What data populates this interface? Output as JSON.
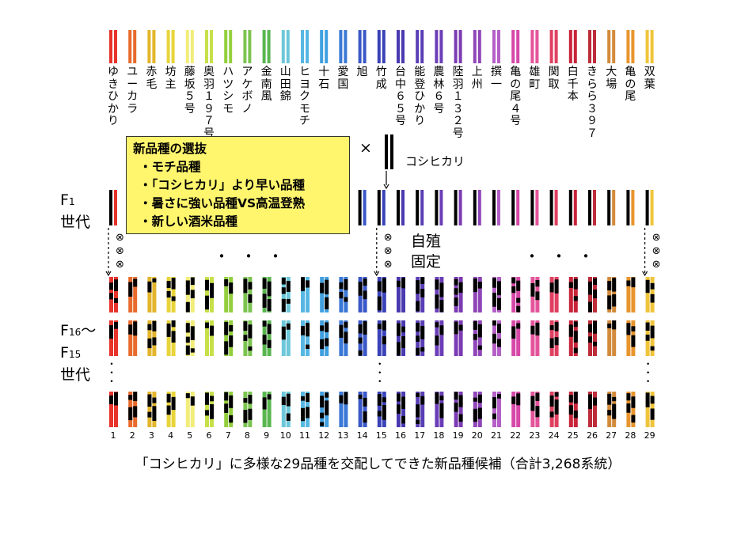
{
  "varieties": [
    "ゆきひかり",
    "ユーカラ",
    "赤毛",
    "坊主",
    "藤坂５号",
    "奥羽１９７号",
    "ハツシモ",
    "アケボノ",
    "金南風",
    "山田錦",
    "ヒヨクモチ",
    "十石",
    "愛国",
    "旭",
    "竹成",
    "台中６５号",
    "能登ひかり",
    "農林６号",
    "陸羽１３２号",
    "上州",
    "撰一",
    "亀の尾４号",
    "雄町",
    "関取",
    "白千本",
    "きらら３９７",
    "大場",
    "亀の尾",
    "双葉"
  ],
  "colors": [
    "#e8332b",
    "#e86a2c",
    "#e3b52b",
    "#e8d43a",
    "#f2ec7a",
    "#c7e04a",
    "#93cf3c",
    "#7cc451",
    "#59b64f",
    "#6cc7d9",
    "#57b7e3",
    "#3f9fe0",
    "#3a78d6",
    "#3a57c8",
    "#3a42b8",
    "#4a3ab0",
    "#5a3eb6",
    "#6b3eb8",
    "#7b3bb3",
    "#8f45b8",
    "#b45fc7",
    "#d648a8",
    "#e4549b",
    "#e04060",
    "#c8243a",
    "#bd2c3a",
    "#d38a3a",
    "#e8952e",
    "#f0c43a"
  ],
  "cross": {
    "symbol": "×",
    "parent": "コシヒカリ"
  },
  "selection": {
    "title": "新品種の選抜",
    "items": [
      "・モチ品種",
      "・「コシヒカリ」より早い品種",
      "・暑さに強い品種VS高温登熟",
      "・新しい酒米品種"
    ]
  },
  "labels": {
    "f1_a": "F",
    "f1_b": "1",
    "f1_c": "世代",
    "f16_a": "F",
    "f16_b": "16",
    "f16_c": "～",
    "f15_a": "F",
    "f15_b": "15",
    "f15_c": "世代",
    "self_a": "自殖",
    "self_b": "固定",
    "selfing_symbol": "⊗",
    "ellipsis": "・・・",
    "vdots": "・\n・\n・"
  },
  "column_numbers": [
    "1",
    "2",
    "3",
    "4",
    "5",
    "6",
    "7",
    "8",
    "9",
    "10",
    "11",
    "12",
    "13",
    "14",
    "15",
    "16",
    "17",
    "18",
    "19",
    "20",
    "21",
    "22",
    "23",
    "24",
    "25",
    "26",
    "27",
    "28",
    "29"
  ],
  "caption": "「コシヒカリ」に多様な29品種を交配してできた新品種候補（合計3,268系統）"
}
